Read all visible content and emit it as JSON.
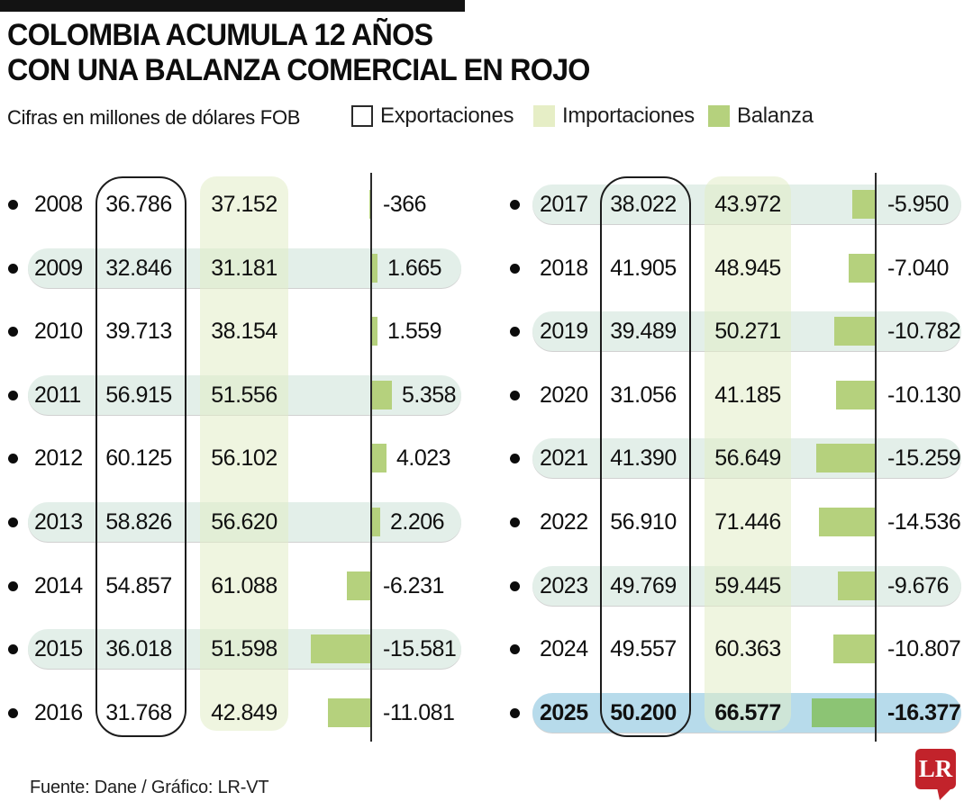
{
  "title": {
    "line1": "COLOMBIA ACUMULA 12 AÑOS",
    "line2": "CON UNA BALANZA COMERCIAL EN ROJO"
  },
  "subtitle": "Cifras en millones de dólares FOB",
  "legend": {
    "exportaciones": "Exportaciones",
    "importaciones": "Importaciones",
    "balanza": "Balanza"
  },
  "footer": {
    "source": "Fuente: Dane / Gráfico: LR-VT",
    "logo_text": "LR"
  },
  "colors": {
    "accent_black": "#131313",
    "importaciones_fill": "#e6eec6",
    "importaciones_column": "rgba(226,237,199,0.55)",
    "balanza_fill": "#b5d17d",
    "balanza_fill_2025": "#8cc474",
    "highlight_green": "#e3efe9",
    "highlight_blue": "#b7dbeb",
    "logo_red": "#c2232b"
  },
  "chart_data": {
    "type": "bar",
    "title": "COLOMBIA ACUMULA 12 AÑOS CON UNA BALANZA COMERCIAL EN ROJO",
    "unit": "Cifras en millones de dólares FOB",
    "series": [
      "Exportaciones",
      "Importaciones",
      "Balanza"
    ],
    "note": "Balanza bars drawn left (negative) or right (positive) of a zero axis; values in millions USD FOB",
    "columns": [
      {
        "rows": [
          {
            "year": "2008",
            "exportaciones": "36.786",
            "importaciones": "37.152",
            "balanza": "-366",
            "balanza_value": -366,
            "highlight": "none"
          },
          {
            "year": "2009",
            "exportaciones": "32.846",
            "importaciones": "31.181",
            "balanza": "1.665",
            "balanza_value": 1665,
            "highlight": "green"
          },
          {
            "year": "2010",
            "exportaciones": "39.713",
            "importaciones": "38.154",
            "balanza": "1.559",
            "balanza_value": 1559,
            "highlight": "none"
          },
          {
            "year": "2011",
            "exportaciones": "56.915",
            "importaciones": "51.556",
            "balanza": "5.358",
            "balanza_value": 5358,
            "highlight": "green"
          },
          {
            "year": "2012",
            "exportaciones": "60.125",
            "importaciones": "56.102",
            "balanza": "4.023",
            "balanza_value": 4023,
            "highlight": "none"
          },
          {
            "year": "2013",
            "exportaciones": "58.826",
            "importaciones": "56.620",
            "balanza": "2.206",
            "balanza_value": 2206,
            "highlight": "green"
          },
          {
            "year": "2014",
            "exportaciones": "54.857",
            "importaciones": "61.088",
            "balanza": "-6.231",
            "balanza_value": -6231,
            "highlight": "none"
          },
          {
            "year": "2015",
            "exportaciones": "36.018",
            "importaciones": "51.598",
            "balanza": "-15.581",
            "balanza_value": -15581,
            "highlight": "green"
          },
          {
            "year": "2016",
            "exportaciones": "31.768",
            "importaciones": "42.849",
            "balanza": "-11.081",
            "balanza_value": -11081,
            "highlight": "none"
          }
        ]
      },
      {
        "rows": [
          {
            "year": "2017",
            "exportaciones": "38.022",
            "importaciones": "43.972",
            "balanza": "-5.950",
            "balanza_value": -5950,
            "highlight": "green"
          },
          {
            "year": "2018",
            "exportaciones": "41.905",
            "importaciones": "48.945",
            "balanza": "-7.040",
            "balanza_value": -7040,
            "highlight": "none"
          },
          {
            "year": "2019",
            "exportaciones": "39.489",
            "importaciones": "50.271",
            "balanza": "-10.782",
            "balanza_value": -10782,
            "highlight": "green"
          },
          {
            "year": "2020",
            "exportaciones": "31.056",
            "importaciones": "41.185",
            "balanza": "-10.130",
            "balanza_value": -10130,
            "highlight": "none"
          },
          {
            "year": "2021",
            "exportaciones": "41.390",
            "importaciones": "56.649",
            "balanza": "-15.259",
            "balanza_value": -15259,
            "highlight": "green"
          },
          {
            "year": "2022",
            "exportaciones": "56.910",
            "importaciones": "71.446",
            "balanza": "-14.536",
            "balanza_value": -14536,
            "highlight": "none"
          },
          {
            "year": "2023",
            "exportaciones": "49.769",
            "importaciones": "59.445",
            "balanza": "-9.676",
            "balanza_value": -9676,
            "highlight": "green"
          },
          {
            "year": "2024",
            "exportaciones": "49.557",
            "importaciones": "60.363",
            "balanza": "-10.807",
            "balanza_value": -10807,
            "highlight": "none"
          },
          {
            "year": "2025",
            "exportaciones": "50.200",
            "importaciones": "66.577",
            "balanza": "-16.377",
            "balanza_value": -16377,
            "highlight": "blue"
          }
        ]
      }
    ]
  }
}
